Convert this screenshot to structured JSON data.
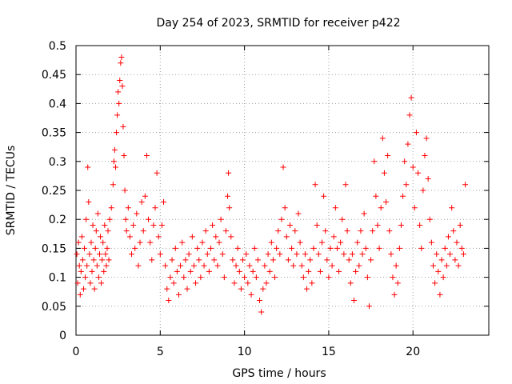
{
  "chart_data": {
    "type": "scatter",
    "title": "Day 254 of 2023, SRMTID for receiver p422",
    "xlabel": "GPS time / hours",
    "ylabel": "SRMTID / TECUs",
    "xlim": [
      0,
      24.5
    ],
    "ylim": [
      0,
      0.5
    ],
    "x_ticks": [
      0,
      5,
      10,
      15,
      20
    ],
    "y_ticks": [
      0,
      0.05,
      0.1,
      0.15,
      0.2,
      0.25,
      0.3,
      0.35,
      0.4,
      0.45,
      0.5
    ],
    "x_tick_labels": [
      "0",
      "5",
      "10",
      "15",
      "20"
    ],
    "y_tick_labels": [
      "0",
      "0.05",
      "0.1",
      "0.15",
      "0.2",
      "0.25",
      "0.3",
      "0.35",
      "0.4",
      "0.45",
      "0.5"
    ],
    "grid": true,
    "marker": "+",
    "point_color": "#ff0000",
    "series": [
      {
        "name": "SRMTID",
        "points": [
          [
            0.05,
            0.14
          ],
          [
            0.1,
            0.09
          ],
          [
            0.15,
            0.16
          ],
          [
            0.2,
            0.12
          ],
          [
            0.25,
            0.07
          ],
          [
            0.3,
            0.11
          ],
          [
            0.35,
            0.17
          ],
          [
            0.4,
            0.13
          ],
          [
            0.45,
            0.08
          ],
          [
            0.5,
            0.15
          ],
          [
            0.55,
            0.1
          ],
          [
            0.6,
            0.2
          ],
          [
            0.65,
            0.12
          ],
          [
            0.7,
            0.29
          ],
          [
            0.75,
            0.23
          ],
          [
            0.8,
            0.14
          ],
          [
            0.85,
            0.09
          ],
          [
            0.9,
            0.16
          ],
          [
            0.95,
            0.11
          ],
          [
            1.0,
            0.19
          ],
          [
            1.05,
            0.13
          ],
          [
            1.1,
            0.08
          ],
          [
            1.15,
            0.15
          ],
          [
            1.2,
            0.18
          ],
          [
            1.25,
            0.12
          ],
          [
            1.3,
            0.21
          ],
          [
            1.35,
            0.1
          ],
          [
            1.4,
            0.14
          ],
          [
            1.45,
            0.17
          ],
          [
            1.5,
            0.09
          ],
          [
            1.55,
            0.13
          ],
          [
            1.6,
            0.16
          ],
          [
            1.65,
            0.11
          ],
          [
            1.7,
            0.19
          ],
          [
            1.75,
            0.14
          ],
          [
            1.8,
            0.12
          ],
          [
            1.85,
            0.15
          ],
          [
            1.9,
            0.18
          ],
          [
            1.95,
            0.13
          ],
          [
            2.0,
            0.2
          ],
          [
            2.1,
            0.22
          ],
          [
            2.2,
            0.26
          ],
          [
            2.25,
            0.3
          ],
          [
            2.3,
            0.32
          ],
          [
            2.35,
            0.29
          ],
          [
            2.4,
            0.35
          ],
          [
            2.45,
            0.38
          ],
          [
            2.5,
            0.42
          ],
          [
            2.55,
            0.4
          ],
          [
            2.6,
            0.44
          ],
          [
            2.65,
            0.47
          ],
          [
            2.7,
            0.48
          ],
          [
            2.75,
            0.43
          ],
          [
            2.8,
            0.36
          ],
          [
            2.85,
            0.31
          ],
          [
            2.9,
            0.25
          ],
          [
            2.95,
            0.2
          ],
          [
            3.0,
            0.18
          ],
          [
            3.1,
            0.22
          ],
          [
            3.2,
            0.17
          ],
          [
            3.3,
            0.14
          ],
          [
            3.4,
            0.19
          ],
          [
            3.5,
            0.15
          ],
          [
            3.6,
            0.21
          ],
          [
            3.7,
            0.12
          ],
          [
            3.8,
            0.16
          ],
          [
            3.9,
            0.23
          ],
          [
            4.0,
            0.18
          ],
          [
            4.1,
            0.24
          ],
          [
            4.2,
            0.31
          ],
          [
            4.3,
            0.2
          ],
          [
            4.4,
            0.16
          ],
          [
            4.5,
            0.13
          ],
          [
            4.6,
            0.19
          ],
          [
            4.7,
            0.22
          ],
          [
            4.8,
            0.28
          ],
          [
            4.9,
            0.17
          ],
          [
            5.0,
            0.14
          ],
          [
            5.1,
            0.19
          ],
          [
            5.2,
            0.23
          ],
          [
            5.3,
            0.12
          ],
          [
            5.4,
            0.08
          ],
          [
            5.5,
            0.06
          ],
          [
            5.6,
            0.1
          ],
          [
            5.7,
            0.13
          ],
          [
            5.8,
            0.09
          ],
          [
            5.9,
            0.15
          ],
          [
            6.0,
            0.11
          ],
          [
            6.1,
            0.07
          ],
          [
            6.2,
            0.12
          ],
          [
            6.3,
            0.16
          ],
          [
            6.4,
            0.1
          ],
          [
            6.5,
            0.13
          ],
          [
            6.6,
            0.08
          ],
          [
            6.7,
            0.14
          ],
          [
            6.8,
            0.11
          ],
          [
            6.9,
            0.17
          ],
          [
            7.0,
            0.12
          ],
          [
            7.1,
            0.09
          ],
          [
            7.2,
            0.15
          ],
          [
            7.3,
            0.13
          ],
          [
            7.4,
            0.1
          ],
          [
            7.5,
            0.16
          ],
          [
            7.6,
            0.12
          ],
          [
            7.7,
            0.18
          ],
          [
            7.8,
            0.14
          ],
          [
            7.9,
            0.11
          ],
          [
            8.0,
            0.15
          ],
          [
            8.1,
            0.19
          ],
          [
            8.2,
            0.13
          ],
          [
            8.3,
            0.17
          ],
          [
            8.4,
            0.12
          ],
          [
            8.5,
            0.16
          ],
          [
            8.6,
            0.2
          ],
          [
            8.7,
            0.14
          ],
          [
            8.8,
            0.1
          ],
          [
            8.9,
            0.18
          ],
          [
            9.0,
            0.24
          ],
          [
            9.05,
            0.28
          ],
          [
            9.1,
            0.22
          ],
          [
            9.2,
            0.17
          ],
          [
            9.3,
            0.13
          ],
          [
            9.4,
            0.09
          ],
          [
            9.5,
            0.12
          ],
          [
            9.6,
            0.15
          ],
          [
            9.7,
            0.11
          ],
          [
            9.8,
            0.08
          ],
          [
            9.9,
            0.13
          ],
          [
            10.0,
            0.1
          ],
          [
            10.1,
            0.14
          ],
          [
            10.2,
            0.09
          ],
          [
            10.3,
            0.12
          ],
          [
            10.4,
            0.07
          ],
          [
            10.5,
            0.11
          ],
          [
            10.6,
            0.15
          ],
          [
            10.7,
            0.1
          ],
          [
            10.8,
            0.13
          ],
          [
            10.9,
            0.06
          ],
          [
            11.0,
            0.04
          ],
          [
            11.1,
            0.08
          ],
          [
            11.2,
            0.12
          ],
          [
            11.3,
            0.09
          ],
          [
            11.4,
            0.14
          ],
          [
            11.5,
            0.11
          ],
          [
            11.6,
            0.16
          ],
          [
            11.7,
            0.13
          ],
          [
            11.8,
            0.1
          ],
          [
            11.9,
            0.15
          ],
          [
            12.0,
            0.18
          ],
          [
            12.1,
            0.14
          ],
          [
            12.2,
            0.2
          ],
          [
            12.3,
            0.29
          ],
          [
            12.4,
            0.22
          ],
          [
            12.5,
            0.17
          ],
          [
            12.6,
            0.13
          ],
          [
            12.7,
            0.19
          ],
          [
            12.8,
            0.15
          ],
          [
            12.9,
            0.12
          ],
          [
            13.0,
            0.18
          ],
          [
            13.1,
            0.14
          ],
          [
            13.2,
            0.21
          ],
          [
            13.3,
            0.16
          ],
          [
            13.4,
            0.12
          ],
          [
            13.5,
            0.1
          ],
          [
            13.6,
            0.14
          ],
          [
            13.7,
            0.08
          ],
          [
            13.8,
            0.11
          ],
          [
            13.9,
            0.13
          ],
          [
            14.0,
            0.09
          ],
          [
            14.1,
            0.15
          ],
          [
            14.2,
            0.26
          ],
          [
            14.3,
            0.19
          ],
          [
            14.4,
            0.14
          ],
          [
            14.5,
            0.11
          ],
          [
            14.6,
            0.16
          ],
          [
            14.7,
            0.24
          ],
          [
            14.8,
            0.18
          ],
          [
            14.9,
            0.13
          ],
          [
            15.0,
            0.1
          ],
          [
            15.1,
            0.15
          ],
          [
            15.2,
            0.12
          ],
          [
            15.3,
            0.17
          ],
          [
            15.4,
            0.22
          ],
          [
            15.5,
            0.15
          ],
          [
            15.6,
            0.11
          ],
          [
            15.7,
            0.16
          ],
          [
            15.8,
            0.2
          ],
          [
            15.9,
            0.14
          ],
          [
            16.0,
            0.26
          ],
          [
            16.1,
            0.18
          ],
          [
            16.2,
            0.13
          ],
          [
            16.3,
            0.09
          ],
          [
            16.4,
            0.14
          ],
          [
            16.5,
            0.06
          ],
          [
            16.6,
            0.11
          ],
          [
            16.7,
            0.16
          ],
          [
            16.8,
            0.12
          ],
          [
            16.9,
            0.18
          ],
          [
            17.0,
            0.14
          ],
          [
            17.1,
            0.21
          ],
          [
            17.2,
            0.15
          ],
          [
            17.3,
            0.1
          ],
          [
            17.4,
            0.05
          ],
          [
            17.5,
            0.13
          ],
          [
            17.6,
            0.18
          ],
          [
            17.7,
            0.3
          ],
          [
            17.8,
            0.24
          ],
          [
            17.9,
            0.19
          ],
          [
            18.0,
            0.15
          ],
          [
            18.1,
            0.22
          ],
          [
            18.2,
            0.34
          ],
          [
            18.3,
            0.28
          ],
          [
            18.4,
            0.23
          ],
          [
            18.5,
            0.31
          ],
          [
            18.6,
            0.18
          ],
          [
            18.7,
            0.14
          ],
          [
            18.8,
            0.1
          ],
          [
            18.9,
            0.07
          ],
          [
            19.0,
            0.12
          ],
          [
            19.1,
            0.09
          ],
          [
            19.2,
            0.15
          ],
          [
            19.3,
            0.19
          ],
          [
            19.4,
            0.24
          ],
          [
            19.5,
            0.3
          ],
          [
            19.6,
            0.26
          ],
          [
            19.7,
            0.33
          ],
          [
            19.8,
            0.38
          ],
          [
            19.9,
            0.41
          ],
          [
            20.0,
            0.29
          ],
          [
            20.1,
            0.22
          ],
          [
            20.2,
            0.35
          ],
          [
            20.3,
            0.28
          ],
          [
            20.4,
            0.19
          ],
          [
            20.5,
            0.15
          ],
          [
            20.6,
            0.25
          ],
          [
            20.7,
            0.31
          ],
          [
            20.8,
            0.34
          ],
          [
            20.9,
            0.27
          ],
          [
            21.0,
            0.2
          ],
          [
            21.1,
            0.16
          ],
          [
            21.2,
            0.12
          ],
          [
            21.3,
            0.09
          ],
          [
            21.4,
            0.14
          ],
          [
            21.5,
            0.11
          ],
          [
            21.6,
            0.07
          ],
          [
            21.7,
            0.13
          ],
          [
            21.8,
            0.1
          ],
          [
            21.9,
            0.15
          ],
          [
            22.0,
            0.12
          ],
          [
            22.1,
            0.17
          ],
          [
            22.2,
            0.14
          ],
          [
            22.3,
            0.22
          ],
          [
            22.4,
            0.18
          ],
          [
            22.5,
            0.13
          ],
          [
            22.6,
            0.16
          ],
          [
            22.7,
            0.12
          ],
          [
            22.8,
            0.19
          ],
          [
            22.9,
            0.15
          ],
          [
            23.0,
            0.14
          ],
          [
            23.1,
            0.26
          ]
        ]
      }
    ]
  }
}
